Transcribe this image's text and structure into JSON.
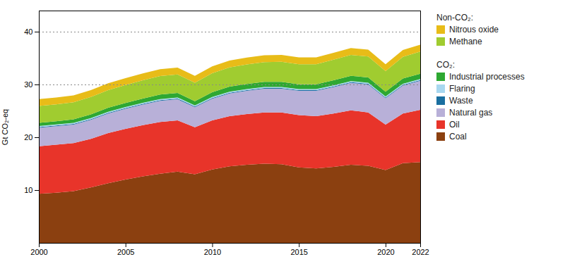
{
  "chart_data": {
    "type": "area",
    "stacked": true,
    "ylabel": "Gt CO₂-eq",
    "x": [
      2000,
      2001,
      2002,
      2003,
      2004,
      2005,
      2006,
      2007,
      2008,
      2009,
      2010,
      2011,
      2012,
      2013,
      2014,
      2015,
      2016,
      2017,
      2018,
      2019,
      2020,
      2021,
      2022
    ],
    "series": [
      {
        "name": "Coal",
        "color": "#8B4010",
        "values": [
          9.3,
          9.5,
          9.8,
          10.5,
          11.3,
          12.0,
          12.6,
          13.1,
          13.5,
          13.0,
          13.9,
          14.5,
          14.8,
          15.0,
          14.9,
          14.3,
          14.1,
          14.4,
          14.8,
          14.6,
          13.8,
          15.1,
          15.3
        ]
      },
      {
        "name": "Oil",
        "color": "#e8342a",
        "values": [
          9.0,
          9.1,
          9.1,
          9.2,
          9.5,
          9.6,
          9.7,
          9.8,
          9.7,
          8.9,
          9.3,
          9.5,
          9.6,
          9.7,
          9.8,
          9.9,
          9.9,
          10.1,
          10.3,
          10.1,
          8.6,
          9.4,
          9.9
        ]
      },
      {
        "name": "Natural gas",
        "color": "#b8b0d8",
        "values": [
          3.5,
          3.5,
          3.5,
          3.6,
          3.7,
          3.8,
          3.9,
          4.0,
          4.0,
          3.8,
          4.1,
          4.3,
          4.4,
          4.5,
          4.5,
          4.6,
          4.8,
          5.0,
          5.2,
          5.3,
          5.0,
          5.3,
          5.5
        ]
      },
      {
        "name": "Waste",
        "color": "#1a6fa0",
        "values": [
          0.15,
          0.15,
          0.15,
          0.15,
          0.15,
          0.15,
          0.15,
          0.15,
          0.15,
          0.15,
          0.15,
          0.15,
          0.15,
          0.15,
          0.15,
          0.15,
          0.15,
          0.15,
          0.15,
          0.15,
          0.15,
          0.15,
          0.15
        ]
      },
      {
        "name": "Flaring",
        "color": "#a8d8f0",
        "values": [
          0.2,
          0.2,
          0.2,
          0.2,
          0.2,
          0.2,
          0.2,
          0.2,
          0.2,
          0.2,
          0.2,
          0.2,
          0.2,
          0.2,
          0.2,
          0.2,
          0.2,
          0.2,
          0.2,
          0.2,
          0.2,
          0.2,
          0.2
        ]
      },
      {
        "name": "Industrial processes",
        "color": "#2ea832",
        "values": [
          0.6,
          0.6,
          0.65,
          0.7,
          0.75,
          0.75,
          0.8,
          0.85,
          0.85,
          0.8,
          0.9,
          0.95,
          0.95,
          0.95,
          0.95,
          0.9,
          0.9,
          0.95,
          1.0,
          1.0,
          0.9,
          1.0,
          1.0
        ]
      },
      {
        "name": "Methane",
        "color": "#a0cc30",
        "values": [
          3.2,
          3.2,
          3.25,
          3.3,
          3.35,
          3.4,
          3.45,
          3.5,
          3.5,
          3.5,
          3.6,
          3.65,
          3.7,
          3.75,
          3.8,
          3.8,
          3.8,
          3.9,
          3.95,
          3.95,
          3.9,
          4.1,
          4.2
        ]
      },
      {
        "name": "Nitrous oxide",
        "color": "#e8bc18",
        "values": [
          1.3,
          1.3,
          1.3,
          1.3,
          1.3,
          1.3,
          1.3,
          1.3,
          1.3,
          1.3,
          1.3,
          1.3,
          1.3,
          1.3,
          1.3,
          1.3,
          1.3,
          1.3,
          1.3,
          1.3,
          1.3,
          1.3,
          1.3
        ]
      }
    ],
    "xlim": [
      2000,
      2022
    ],
    "xticks": [
      2000,
      2005,
      2010,
      2015,
      2020,
      2022
    ],
    "ylim": [
      0,
      44
    ],
    "yticks": [
      10,
      20,
      30,
      40
    ],
    "grid": false,
    "legend": "right",
    "legend_groups": [
      {
        "title": "Non-CO₂:",
        "names": [
          "Nitrous oxide",
          "Methane"
        ]
      },
      {
        "title": "CO₂:",
        "names": [
          "Industrial processes",
          "Flaring",
          "Waste",
          "Natural gas",
          "Oil",
          "Coal"
        ]
      }
    ],
    "hlines": [
      {
        "value": 30,
        "color": "#888888",
        "line_style": "dotted"
      },
      {
        "value": 40,
        "color": "#888888",
        "line_style": "dotted"
      }
    ]
  }
}
